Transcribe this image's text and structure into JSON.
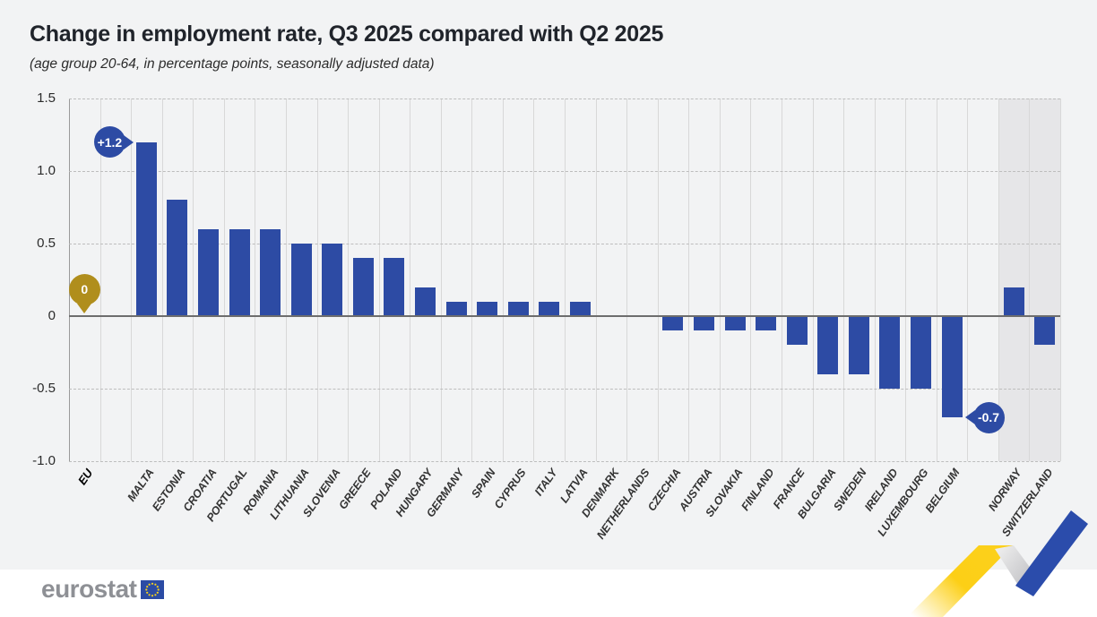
{
  "chart_data": {
    "type": "bar",
    "title": "Change in employment rate, Q3 2025 compared with Q2 2025",
    "subtitle": "(age group 20-64, in percentage points, seasonally adjusted data)",
    "ylim": [
      -1.0,
      1.5
    ],
    "yticks": [
      "1.5",
      "1.0",
      "0.5",
      "0",
      "-0.5",
      "-1.0"
    ],
    "grid": true,
    "bar_color": "#2d4ba4",
    "highlight_band_color": "#e6e6e8",
    "zero_line_color": "#6d6d6d",
    "groups": [
      {
        "name": "eu-aggregate",
        "items": [
          {
            "label": "EU",
            "value": 0,
            "emphasis": true
          }
        ]
      },
      {
        "name": "member-states",
        "items": [
          {
            "label": "MALTA",
            "value": 1.2
          },
          {
            "label": "ESTONIA",
            "value": 0.8
          },
          {
            "label": "CROATIA",
            "value": 0.6
          },
          {
            "label": "PORTUGAL",
            "value": 0.6
          },
          {
            "label": "ROMANIA",
            "value": 0.6
          },
          {
            "label": "LITHUANIA",
            "value": 0.5
          },
          {
            "label": "SLOVENIA",
            "value": 0.5
          },
          {
            "label": "GREECE",
            "value": 0.4
          },
          {
            "label": "POLAND",
            "value": 0.4
          },
          {
            "label": "HUNGARY",
            "value": 0.2
          },
          {
            "label": "GERMANY",
            "value": 0.1
          },
          {
            "label": "SPAIN",
            "value": 0.1
          },
          {
            "label": "CYPRUS",
            "value": 0.1
          },
          {
            "label": "ITALY",
            "value": 0.1
          },
          {
            "label": "LATVIA",
            "value": 0.1
          },
          {
            "label": "DENMARK",
            "value": 0
          },
          {
            "label": "NETHERLANDS",
            "value": 0
          },
          {
            "label": "CZECHIA",
            "value": -0.1
          },
          {
            "label": "AUSTRIA",
            "value": -0.1
          },
          {
            "label": "SLOVAKIA",
            "value": -0.1
          },
          {
            "label": "FINLAND",
            "value": -0.1
          },
          {
            "label": "FRANCE",
            "value": -0.2
          },
          {
            "label": "BULGARIA",
            "value": -0.4
          },
          {
            "label": "SWEDEN",
            "value": -0.4
          },
          {
            "label": "IRELAND",
            "value": -0.5
          },
          {
            "label": "LUXEMBOURG",
            "value": -0.5
          },
          {
            "label": "BELGIUM",
            "value": -0.7
          }
        ]
      },
      {
        "name": "efta",
        "banded": true,
        "items": [
          {
            "label": "NORWAY",
            "value": 0.2
          },
          {
            "label": "SWITZERLAND",
            "value": -0.2
          }
        ]
      }
    ],
    "annotations": [
      {
        "text": "+1.2",
        "country": "MALTA",
        "value": 1.2,
        "side": "left",
        "color": "#2d4ba4"
      },
      {
        "text": "0",
        "country": "EU",
        "value": 0,
        "side": "above",
        "color": "#b08e1c"
      },
      {
        "text": "-0.7",
        "country": "BELGIUM",
        "value": -0.7,
        "side": "right",
        "color": "#2d4ba4"
      }
    ]
  },
  "footer": {
    "logo_text": "eurostat"
  }
}
